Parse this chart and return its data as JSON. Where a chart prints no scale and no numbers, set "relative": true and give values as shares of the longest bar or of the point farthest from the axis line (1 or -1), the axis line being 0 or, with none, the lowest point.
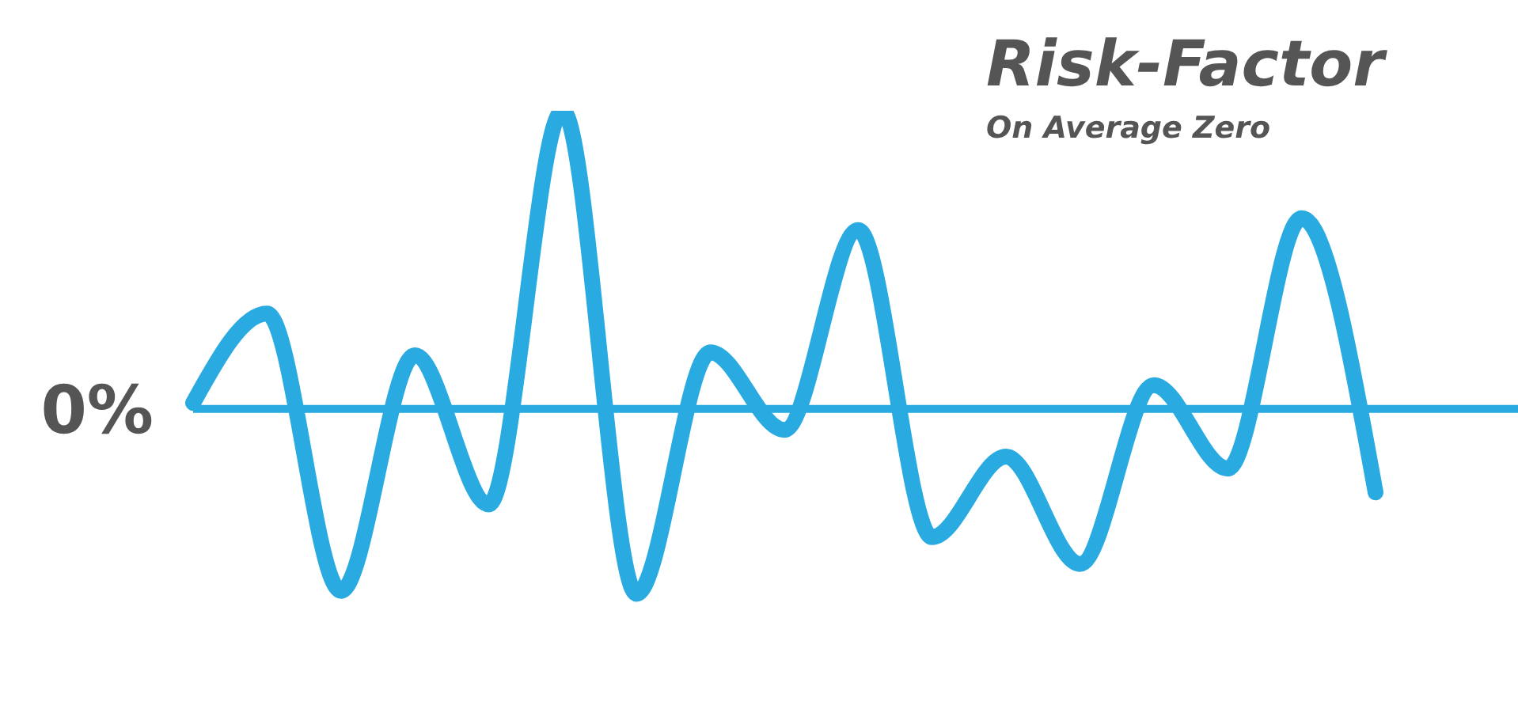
{
  "chart_data": {
    "type": "line",
    "title": "Risk-Factor",
    "subtitle": "On Average Zero",
    "relative": true,
    "categories": [
      null,
      null,
      null,
      null,
      null,
      null,
      null,
      null,
      null,
      null,
      null,
      null,
      null,
      null,
      null,
      null,
      null
    ],
    "series": [
      {
        "color": "#29abe2",
        "values": [
          0.02,
          0.32,
          -0.61,
          0.18,
          -0.32,
          1,
          -0.62,
          0.19,
          -0.07,
          0.6,
          -0.43,
          -0.16,
          -0.52,
          0.08,
          -0.2,
          0.64,
          -0.28
        ]
      }
    ],
    "ref_lines": [
      {
        "axis": "y",
        "value": 0,
        "label": "0%",
        "color": "#29abe2"
      }
    ],
    "grid": false,
    "legend": false
  }
}
